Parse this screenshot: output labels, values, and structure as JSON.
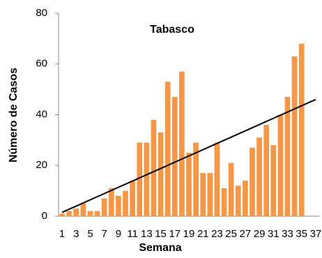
{
  "chart_data": {
    "type": "bar",
    "title": "Tabasco",
    "x_label": "Semana",
    "y_label": "Número de Casos",
    "categories": [
      "1",
      null,
      "3",
      null,
      "5",
      null,
      "7",
      null,
      "9",
      null,
      "11",
      null,
      "13",
      null,
      "15",
      null,
      "17",
      null,
      "19",
      null,
      "21",
      null,
      "23",
      null,
      "25",
      null,
      "27",
      null,
      "29",
      null,
      "31",
      null,
      "33",
      null,
      "35",
      null,
      "37"
    ],
    "values": [
      1,
      2,
      3,
      5,
      2,
      2,
      7,
      11,
      8,
      10,
      14,
      29,
      29,
      38,
      33,
      53,
      47,
      57,
      25,
      29,
      17,
      17,
      29,
      11,
      21,
      12,
      14,
      27,
      31,
      36,
      28,
      40,
      47,
      63,
      68,
      null,
      null
    ],
    "color": "#f79646",
    "trendline": {
      "x": [
        1,
        37
      ],
      "values": [
        1.5,
        46
      ],
      "color": "#000000"
    },
    "ylim": [
      0,
      80
    ],
    "yticks": [
      0,
      20,
      40,
      60,
      80
    ],
    "grid": false
  }
}
